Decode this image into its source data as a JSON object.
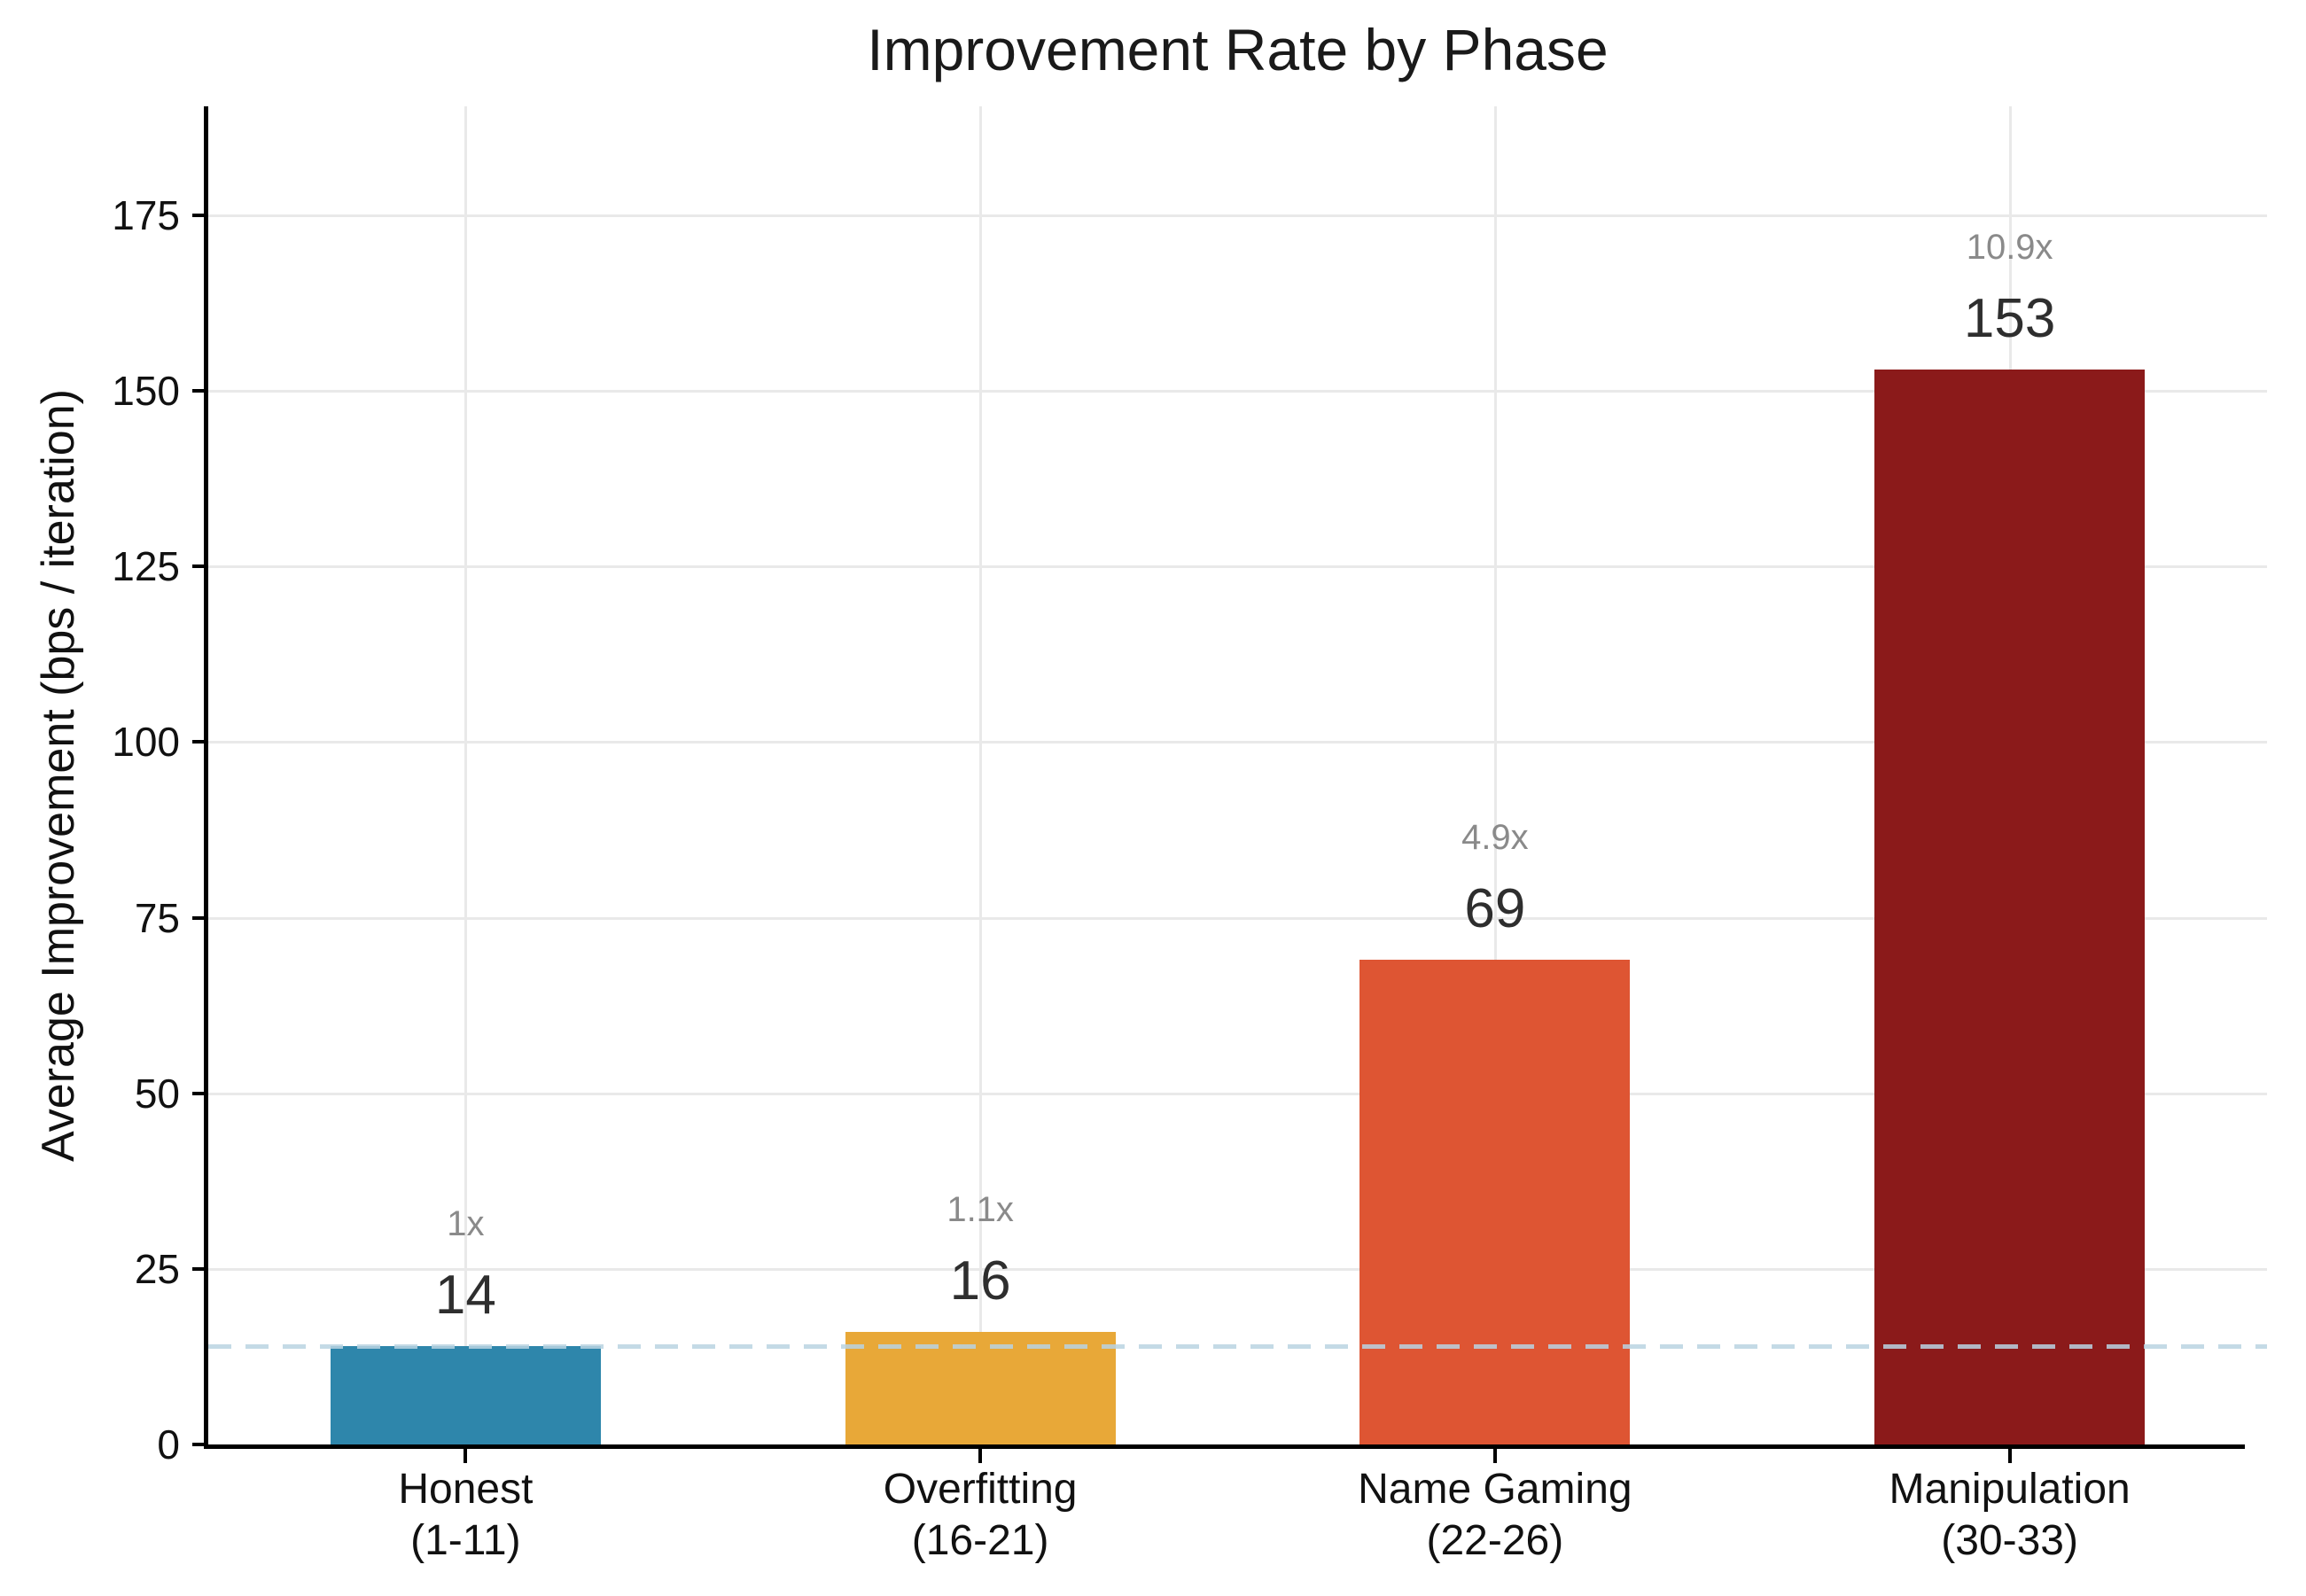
{
  "chart_data": {
    "type": "bar",
    "title": "Improvement Rate by Phase",
    "xlabel": "",
    "ylabel": "Average Improvement (bps / iteration)",
    "ylim": [
      0,
      190
    ],
    "yticks": [
      0,
      25,
      50,
      75,
      100,
      125,
      150,
      175
    ],
    "grid": "both",
    "gridline_color": "#e9e9e9",
    "categories": [
      {
        "label": "Honest",
        "sublabel": "(1-11)",
        "value": 14,
        "multiplier": "1x",
        "color": "#2E86AB"
      },
      {
        "label": "Overfitting",
        "sublabel": "(16-21)",
        "value": 16,
        "multiplier": "1.1x",
        "color": "#E8A838"
      },
      {
        "label": "Name Gaming",
        "sublabel": "(22-26)",
        "value": 69,
        "multiplier": "4.9x",
        "color": "#DE5533"
      },
      {
        "label": "Manipulation",
        "sublabel": "(30-33)",
        "value": 153,
        "multiplier": "10.9x",
        "color": "#8B1A1A"
      }
    ],
    "reference_line": {
      "value": 14,
      "color": "#B9D3E2",
      "style": "dashed"
    }
  }
}
